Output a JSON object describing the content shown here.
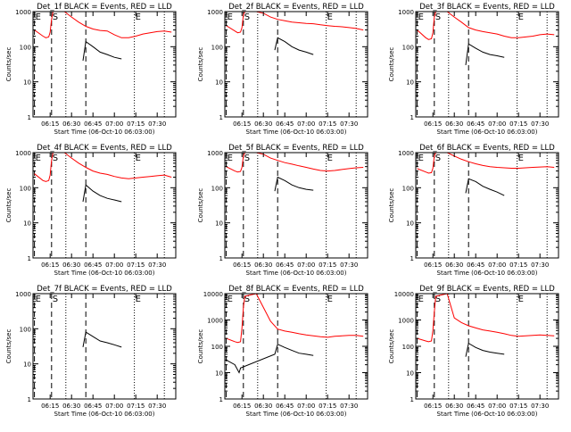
{
  "colors": {
    "events": "#000000",
    "lld": "#ff0000",
    "axes": "#000000",
    "background": "#ffffff"
  },
  "chart_data": [
    {
      "type": "line",
      "title": "Det_1f BLACK = Events, RED = LLD",
      "xlabel": "Start Time (06-Oct-10 06:03:00)",
      "ylabel": "Counts/sec",
      "yscale": "log",
      "ylim": [
        1,
        1000
      ],
      "xticks": [
        "06:15",
        "06:30",
        "06:45",
        "07:00",
        "07:15",
        "07:30"
      ],
      "yticks": [
        "1",
        "10",
        "100",
        "1000"
      ],
      "markers": [
        {
          "label": "E",
          "x": "06:04"
        },
        {
          "label": "S",
          "x": "06:16"
        },
        {
          "label": "E",
          "x": "07:14"
        }
      ],
      "series": [
        {
          "name": "LLD",
          "color": "#ff0000",
          "x": [
            "06:04",
            "06:10",
            "06:12",
            "06:14",
            "06:15",
            "06:16",
            "06:17",
            "06:25",
            "06:30",
            "06:35",
            "06:40",
            "06:45",
            "06:50",
            "06:55",
            "07:00",
            "07:05",
            "07:10",
            "07:15",
            "07:20",
            "07:25",
            "07:30",
            "07:35",
            "07:40"
          ],
          "y": [
            300,
            200,
            180,
            190,
            260,
            600,
            1000,
            1000,
            700,
            500,
            380,
            320,
            290,
            280,
            220,
            180,
            180,
            200,
            230,
            250,
            270,
            280,
            260
          ]
        },
        {
          "name": "Events",
          "color": "#000000",
          "x": [
            "06:38",
            "06:40",
            "06:45",
            "06:50",
            "06:55",
            "07:00",
            "07:05"
          ],
          "y": [
            40,
            140,
            100,
            70,
            60,
            50,
            45
          ]
        }
      ]
    },
    {
      "type": "line",
      "title": "Det_2f BLACK = Events, RED = LLD",
      "xlabel": "Start Time (06-Oct-10 06:03:00)",
      "ylabel": "Counts/sec",
      "yscale": "log",
      "ylim": [
        1,
        1000
      ],
      "xticks": [
        "06:15",
        "06:30",
        "06:45",
        "07:00",
        "07:15",
        "07:30"
      ],
      "yticks": [
        "1",
        "10",
        "100",
        "1000"
      ],
      "markers": [
        {
          "label": "E",
          "x": "06:04"
        },
        {
          "label": "S",
          "x": "06:16"
        },
        {
          "label": "E",
          "x": "07:14"
        }
      ],
      "series": [
        {
          "name": "LLD",
          "color": "#ff0000",
          "x": [
            "06:04",
            "06:10",
            "06:12",
            "06:14",
            "06:15",
            "06:16",
            "06:17",
            "06:25",
            "06:30",
            "06:35",
            "06:40",
            "06:45",
            "06:50",
            "06:55",
            "07:00",
            "07:05",
            "07:10",
            "07:15",
            "07:20",
            "07:25",
            "07:30",
            "07:35",
            "07:40"
          ],
          "y": [
            400,
            280,
            250,
            260,
            350,
            800,
            1000,
            1000,
            900,
            700,
            600,
            550,
            500,
            480,
            460,
            450,
            420,
            400,
            380,
            370,
            350,
            330,
            300
          ]
        },
        {
          "name": "Events",
          "color": "#000000",
          "x": [
            "06:38",
            "06:40",
            "06:45",
            "06:50",
            "06:55",
            "07:00",
            "07:05"
          ],
          "y": [
            80,
            180,
            140,
            100,
            80,
            70,
            60
          ]
        }
      ]
    },
    {
      "type": "line",
      "title": "Det_3f BLACK = Events, RED = LLD",
      "xlabel": "Start Time (06-Oct-10 06:03:00)",
      "ylabel": "Counts/sec",
      "yscale": "log",
      "ylim": [
        1,
        1000
      ],
      "xticks": [
        "06:15",
        "06:30",
        "06:45",
        "07:00",
        "07:15",
        "07:30"
      ],
      "yticks": [
        "1",
        "10",
        "100",
        "1000"
      ],
      "markers": [
        {
          "label": "E",
          "x": "06:04"
        },
        {
          "label": "S",
          "x": "06:16"
        },
        {
          "label": "E",
          "x": "07:14"
        }
      ],
      "series": [
        {
          "name": "LLD",
          "color": "#ff0000",
          "x": [
            "06:04",
            "06:10",
            "06:12",
            "06:14",
            "06:15",
            "06:16",
            "06:17",
            "06:25",
            "06:30",
            "06:35",
            "06:40",
            "06:45",
            "06:50",
            "06:55",
            "07:00",
            "07:05",
            "07:10",
            "07:15",
            "07:20",
            "07:25",
            "07:30",
            "07:35",
            "07:40"
          ],
          "y": [
            300,
            180,
            160,
            170,
            250,
            700,
            1000,
            1000,
            700,
            500,
            350,
            300,
            270,
            250,
            230,
            200,
            180,
            180,
            190,
            200,
            220,
            230,
            220
          ]
        },
        {
          "name": "Events",
          "color": "#000000",
          "x": [
            "06:38",
            "06:40",
            "06:45",
            "06:50",
            "06:55",
            "07:00",
            "07:05"
          ],
          "y": [
            30,
            120,
            90,
            70,
            60,
            55,
            50
          ]
        }
      ]
    },
    {
      "type": "line",
      "title": "Det_4f BLACK = Events, RED = LLD",
      "xlabel": "Start Time (06-Oct-10 06:03:00)",
      "ylabel": "Counts/sec",
      "yscale": "log",
      "ylim": [
        1,
        1000
      ],
      "xticks": [
        "06:15",
        "06:30",
        "06:45",
        "07:00",
        "07:15",
        "07:30"
      ],
      "yticks": [
        "1",
        "10",
        "100",
        "1000"
      ],
      "markers": [
        {
          "label": "E",
          "x": "06:04"
        },
        {
          "label": "S",
          "x": "06:16"
        },
        {
          "label": "E",
          "x": "07:14"
        }
      ],
      "series": [
        {
          "name": "LLD",
          "color": "#ff0000",
          "x": [
            "06:04",
            "06:10",
            "06:12",
            "06:14",
            "06:15",
            "06:16",
            "06:17",
            "06:25",
            "06:30",
            "06:35",
            "06:40",
            "06:45",
            "06:50",
            "06:55",
            "07:00",
            "07:05",
            "07:10",
            "07:15",
            "07:20",
            "07:25",
            "07:30",
            "07:35",
            "07:40"
          ],
          "y": [
            250,
            160,
            150,
            160,
            230,
            600,
            1000,
            1000,
            700,
            500,
            380,
            300,
            260,
            240,
            210,
            190,
            180,
            190,
            200,
            210,
            220,
            230,
            200
          ]
        },
        {
          "name": "Events",
          "color": "#000000",
          "x": [
            "06:38",
            "06:40",
            "06:45",
            "06:50",
            "06:55",
            "07:00",
            "07:05"
          ],
          "y": [
            40,
            120,
            80,
            60,
            50,
            45,
            40
          ]
        }
      ]
    },
    {
      "type": "line",
      "title": "Det_5f BLACK = Events, RED = LLD",
      "xlabel": "Start Time (06-Oct-10 06:03:00)",
      "ylabel": "Counts/sec",
      "yscale": "log",
      "ylim": [
        1,
        1000
      ],
      "xticks": [
        "06:15",
        "06:30",
        "06:45",
        "07:00",
        "07:15",
        "07:30"
      ],
      "yticks": [
        "1",
        "10",
        "100",
        "1000"
      ],
      "markers": [
        {
          "label": "E",
          "x": "06:04"
        },
        {
          "label": "S",
          "x": "06:16"
        },
        {
          "label": "E",
          "x": "07:14"
        }
      ],
      "series": [
        {
          "name": "LLD",
          "color": "#ff0000",
          "x": [
            "06:04",
            "06:10",
            "06:12",
            "06:14",
            "06:15",
            "06:16",
            "06:17",
            "06:25",
            "06:30",
            "06:35",
            "06:40",
            "06:45",
            "06:50",
            "06:55",
            "07:00",
            "07:05",
            "07:10",
            "07:15",
            "07:20",
            "07:25",
            "07:30",
            "07:35",
            "07:40"
          ],
          "y": [
            400,
            300,
            280,
            290,
            380,
            800,
            1000,
            1000,
            900,
            700,
            600,
            520,
            470,
            420,
            380,
            340,
            310,
            300,
            310,
            330,
            350,
            370,
            380
          ]
        },
        {
          "name": "Events",
          "color": "#000000",
          "x": [
            "06:38",
            "06:40",
            "06:45",
            "06:50",
            "06:55",
            "07:00",
            "07:05"
          ],
          "y": [
            80,
            200,
            160,
            120,
            100,
            90,
            85
          ]
        }
      ]
    },
    {
      "type": "line",
      "title": "Det_6f BLACK = Events, RED = LLD",
      "xlabel": "Start Time (06-Oct-10 06:03:00)",
      "ylabel": "Counts/sec",
      "yscale": "log",
      "ylim": [
        1,
        1000
      ],
      "xticks": [
        "06:15",
        "06:30",
        "06:45",
        "07:00",
        "07:15",
        "07:30"
      ],
      "yticks": [
        "1",
        "10",
        "100",
        "1000"
      ],
      "markers": [
        {
          "label": "E",
          "x": "06:04"
        },
        {
          "label": "S",
          "x": "06:16"
        },
        {
          "label": "E",
          "x": "07:14"
        }
      ],
      "series": [
        {
          "name": "LLD",
          "color": "#ff0000",
          "x": [
            "06:04",
            "06:10",
            "06:12",
            "06:14",
            "06:15",
            "06:16",
            "06:17",
            "06:25",
            "06:30",
            "06:35",
            "06:40",
            "06:45",
            "06:50",
            "06:55",
            "07:00",
            "07:05",
            "07:10",
            "07:15",
            "07:20",
            "07:25",
            "07:30",
            "07:35",
            "07:40"
          ],
          "y": [
            350,
            280,
            260,
            270,
            360,
            800,
            1000,
            1000,
            800,
            650,
            550,
            480,
            430,
            400,
            380,
            370,
            360,
            360,
            370,
            380,
            390,
            400,
            380
          ]
        },
        {
          "name": "Events",
          "color": "#000000",
          "x": [
            "06:38",
            "06:40",
            "06:45",
            "06:50",
            "06:55",
            "07:00",
            "07:05"
          ],
          "y": [
            70,
            180,
            150,
            110,
            90,
            75,
            60
          ]
        }
      ]
    },
    {
      "type": "line",
      "title": "Det_7f BLACK = Events, RED = LLD",
      "xlabel": "Start Time (06-Oct-10 06:03:00)",
      "ylabel": "Counts/sec",
      "yscale": "log",
      "ylim": [
        1,
        1000
      ],
      "xticks": [
        "06:15",
        "06:30",
        "06:45",
        "07:00",
        "07:15",
        "07:30"
      ],
      "yticks": [
        "1",
        "10",
        "100",
        "1000"
      ],
      "markers": [
        {
          "label": "E",
          "x": "06:04"
        },
        {
          "label": "S",
          "x": "06:16"
        },
        {
          "label": "E",
          "x": "07:14"
        }
      ],
      "series": [
        {
          "name": "LLD",
          "color": "#ff0000",
          "x": [
            "06:04",
            "06:10",
            "06:12",
            "06:14",
            "06:15",
            "06:16",
            "06:17",
            "06:25",
            "06:30",
            "06:35",
            "06:40",
            "06:45",
            "06:50",
            "06:55",
            "07:00",
            "07:05",
            "07:10",
            "07:15",
            "07:20",
            "07:25",
            "07:30",
            "07:35",
            "07:40"
          ],
          "y": [
            1000,
            1000,
            1000,
            1000,
            1000,
            1000,
            1000,
            1000,
            1000,
            1000,
            1000,
            1000,
            1000,
            1000,
            1000,
            1000,
            1000,
            1000,
            1000,
            1000,
            1000,
            1000,
            1000
          ]
        },
        {
          "name": "Events",
          "color": "#000000",
          "x": [
            "06:38",
            "06:40",
            "06:45",
            "06:50",
            "06:55",
            "07:00",
            "07:05"
          ],
          "y": [
            30,
            80,
            60,
            45,
            40,
            35,
            30
          ]
        }
      ]
    },
    {
      "type": "line",
      "title": "Det_8f BLACK = Events, RED = LLD",
      "xlabel": "Start Time (06-Oct-10 06:03:00)",
      "ylabel": "Counts/sec",
      "yscale": "log",
      "ylim": [
        1,
        10000
      ],
      "xticks": [
        "06:15",
        "06:30",
        "06:45",
        "07:00",
        "07:15",
        "07:30"
      ],
      "yticks": [
        "1",
        "10",
        "100",
        "1000",
        "10000"
      ],
      "markers": [
        {
          "label": "E",
          "x": "06:04"
        },
        {
          "label": "S",
          "x": "06:16"
        },
        {
          "label": "E",
          "x": "07:14"
        }
      ],
      "series": [
        {
          "name": "LLD",
          "color": "#ff0000",
          "x": [
            "06:04",
            "06:10",
            "06:12",
            "06:14",
            "06:15",
            "06:16",
            "06:17",
            "06:25",
            "06:30",
            "06:35",
            "06:40",
            "06:45",
            "06:50",
            "06:55",
            "07:00",
            "07:05",
            "07:10",
            "07:15",
            "07:20",
            "07:25",
            "07:30",
            "07:35",
            "07:40"
          ],
          "y": [
            200,
            150,
            140,
            150,
            500,
            3000,
            8000,
            10000,
            3000,
            900,
            450,
            380,
            340,
            300,
            270,
            250,
            230,
            220,
            240,
            250,
            260,
            260,
            240
          ]
        },
        {
          "name": "Events",
          "color": "#000000",
          "x": [
            "06:04",
            "06:10",
            "06:13",
            "06:14",
            "06:38",
            "06:40",
            "06:45",
            "06:50",
            "06:55",
            "07:00",
            "07:05"
          ],
          "y": [
            30,
            20,
            10,
            15,
            50,
            120,
            90,
            70,
            55,
            50,
            45
          ]
        }
      ]
    },
    {
      "type": "line",
      "title": "Det_9f BLACK = Events, RED = LLD",
      "xlabel": "Start Time (06-Oct-10 06:03:00)",
      "ylabel": "Counts/sec",
      "yscale": "log",
      "ylim": [
        1,
        10000
      ],
      "xticks": [
        "06:15",
        "06:30",
        "06:45",
        "07:00",
        "07:15",
        "07:30"
      ],
      "yticks": [
        "1",
        "10",
        "100",
        "1000",
        "10000"
      ],
      "markers": [
        {
          "label": "E",
          "x": "06:04"
        },
        {
          "label": "S",
          "x": "06:16"
        },
        {
          "label": "E",
          "x": "07:14"
        }
      ],
      "series": [
        {
          "name": "LLD",
          "color": "#ff0000",
          "x": [
            "06:04",
            "06:10",
            "06:12",
            "06:14",
            "06:15",
            "06:16",
            "06:17",
            "06:25",
            "06:30",
            "06:35",
            "06:40",
            "06:45",
            "06:50",
            "06:55",
            "07:00",
            "07:05",
            "07:10",
            "07:15",
            "07:20",
            "07:25",
            "07:30",
            "07:35",
            "07:40"
          ],
          "y": [
            200,
            160,
            150,
            160,
            400,
            2000,
            8000,
            10000,
            1200,
            800,
            600,
            500,
            420,
            380,
            340,
            300,
            260,
            240,
            250,
            260,
            270,
            260,
            250
          ]
        },
        {
          "name": "Events",
          "color": "#000000",
          "x": [
            "06:38",
            "06:40",
            "06:45",
            "06:50",
            "06:55",
            "07:00",
            "07:05"
          ],
          "y": [
            40,
            130,
            90,
            70,
            60,
            55,
            50
          ]
        }
      ]
    }
  ]
}
